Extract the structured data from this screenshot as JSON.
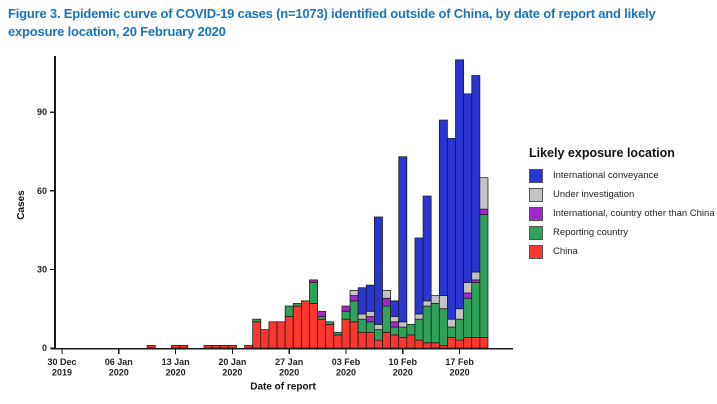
{
  "figure": {
    "title_line1": "Figure 3. Epidemic curve of COVID-19 cases (n=1073) identified outside of China, by date of report and likely",
    "title_line2": "exposure location, 20 February 2020"
  },
  "chart_data": {
    "type": "bar",
    "stacked": true,
    "title": "Figure 3. Epidemic curve of COVID-19 cases (n=1073) identified outside of China, by date of report and likely exposure location, 20 February 2020",
    "total_cases": 1073,
    "xlabel": "Date of report",
    "ylabel": "Cases",
    "ylim": [
      0,
      115
    ],
    "yticks": [
      0,
      30,
      60,
      90
    ],
    "grid": false,
    "legend_title": "Likely exposure location",
    "legend_position": "right",
    "x_axis_start_date": "30 Dec 2019",
    "x_axis_end_date": "20 Feb 2020",
    "x_ticks": [
      {
        "index": 0,
        "line1": "30 Dec",
        "line2": "2019"
      },
      {
        "index": 7,
        "line1": "06 Jan",
        "line2": "2020"
      },
      {
        "index": 14,
        "line1": "13 Jan",
        "line2": "2020"
      },
      {
        "index": 21,
        "line1": "20 Jan",
        "line2": "2020"
      },
      {
        "index": 28,
        "line1": "27 Jan",
        "line2": "2020"
      },
      {
        "index": 35,
        "line1": "03 Feb",
        "line2": "2020"
      },
      {
        "index": 42,
        "line1": "10 Feb",
        "line2": "2020"
      },
      {
        "index": 49,
        "line1": "17 Feb",
        "line2": "2020"
      }
    ],
    "series": [
      {
        "key": "international_conveyance",
        "name": "International conveyance",
        "color": "#2B35D1"
      },
      {
        "key": "under_investigation",
        "name": "Under investigation",
        "color": "#C3C3C3"
      },
      {
        "key": "international_other",
        "name": "International, country other than China",
        "color": "#A128CC"
      },
      {
        "key": "reporting_country",
        "name": "Reporting country",
        "color": "#2EA258"
      },
      {
        "key": "china",
        "name": "China",
        "color": "#F9372E"
      }
    ],
    "stack_order_bottom_to_top": [
      "china",
      "reporting_country",
      "international_other",
      "under_investigation",
      "international_conveyance"
    ],
    "days": [
      {
        "date": "10 Jan",
        "index": 11,
        "china": 1
      },
      {
        "date": "13 Jan",
        "index": 14,
        "china": 1
      },
      {
        "date": "14 Jan",
        "index": 15,
        "china": 1
      },
      {
        "date": "17 Jan",
        "index": 18,
        "china": 1
      },
      {
        "date": "18 Jan",
        "index": 19,
        "china": 1
      },
      {
        "date": "19 Jan",
        "index": 20,
        "china": 1
      },
      {
        "date": "20 Jan",
        "index": 21,
        "china": 1
      },
      {
        "date": "22 Jan",
        "index": 23,
        "china": 1
      },
      {
        "date": "23 Jan",
        "index": 24,
        "china": 10,
        "reporting_country": 1
      },
      {
        "date": "24 Jan",
        "index": 25,
        "china": 7
      },
      {
        "date": "25 Jan",
        "index": 26,
        "china": 10
      },
      {
        "date": "26 Jan",
        "index": 27,
        "china": 10
      },
      {
        "date": "27 Jan",
        "index": 28,
        "china": 12,
        "reporting_country": 4
      },
      {
        "date": "28 Jan",
        "index": 29,
        "china": 16,
        "reporting_country": 1
      },
      {
        "date": "29 Jan",
        "index": 30,
        "china": 18
      },
      {
        "date": "30 Jan",
        "index": 31,
        "china": 17,
        "reporting_country": 8,
        "international_other": 1
      },
      {
        "date": "31 Jan",
        "index": 32,
        "china": 11,
        "reporting_country": 1,
        "international_other": 2
      },
      {
        "date": "01 Feb",
        "index": 33,
        "china": 9,
        "reporting_country": 1
      },
      {
        "date": "02 Feb",
        "index": 34,
        "china": 5,
        "reporting_country": 1
      },
      {
        "date": "03 Feb",
        "index": 35,
        "china": 11,
        "reporting_country": 3,
        "international_other": 2
      },
      {
        "date": "04 Feb",
        "index": 36,
        "china": 10,
        "reporting_country": 8,
        "international_other": 2,
        "under_investigation": 2
      },
      {
        "date": "05 Feb",
        "index": 37,
        "china": 6,
        "reporting_country": 5,
        "under_investigation": 2,
        "international_conveyance": 10
      },
      {
        "date": "06 Feb",
        "index": 38,
        "china": 6,
        "reporting_country": 4,
        "international_other": 2,
        "under_investigation": 2,
        "international_conveyance": 10
      },
      {
        "date": "07 Feb",
        "index": 39,
        "china": 3,
        "reporting_country": 4,
        "under_investigation": 2,
        "international_conveyance": 41
      },
      {
        "date": "08 Feb",
        "index": 40,
        "china": 6,
        "reporting_country": 10,
        "international_other": 3,
        "under_investigation": 3
      },
      {
        "date": "09 Feb",
        "index": 41,
        "china": 5,
        "reporting_country": 3,
        "international_other": 2,
        "under_investigation": 2,
        "international_conveyance": 6
      },
      {
        "date": "10 Feb",
        "index": 42,
        "china": 4,
        "reporting_country": 4,
        "under_investigation": 2,
        "international_conveyance": 63
      },
      {
        "date": "11 Feb",
        "index": 43,
        "china": 5,
        "reporting_country": 4
      },
      {
        "date": "12 Feb",
        "index": 44,
        "china": 3,
        "reporting_country": 8,
        "under_investigation": 2,
        "international_conveyance": 29
      },
      {
        "date": "13 Feb",
        "index": 45,
        "china": 2,
        "reporting_country": 14,
        "under_investigation": 2,
        "international_conveyance": 40
      },
      {
        "date": "14 Feb",
        "index": 46,
        "china": 2,
        "reporting_country": 15,
        "under_investigation": 3
      },
      {
        "date": "15 Feb",
        "index": 47,
        "china": 1,
        "reporting_country": 14,
        "under_investigation": 5,
        "international_conveyance": 67
      },
      {
        "date": "16 Feb",
        "index": 48,
        "china": 4,
        "reporting_country": 4,
        "under_investigation": 3,
        "international_conveyance": 69
      },
      {
        "date": "17 Feb",
        "index": 49,
        "china": 3,
        "reporting_country": 8,
        "under_investigation": 4,
        "international_conveyance": 95
      },
      {
        "date": "18 Feb",
        "index": 50,
        "china": 4,
        "reporting_country": 15,
        "international_other": 2,
        "under_investigation": 4,
        "international_conveyance": 72
      },
      {
        "date": "19 Feb",
        "index": 51,
        "china": 4,
        "reporting_country": 21,
        "international_other": 1,
        "under_investigation": 3,
        "international_conveyance": 75
      },
      {
        "date": "20 Feb",
        "index": 52,
        "china": 4,
        "reporting_country": 47,
        "international_other": 2,
        "under_investigation": 12
      }
    ]
  }
}
